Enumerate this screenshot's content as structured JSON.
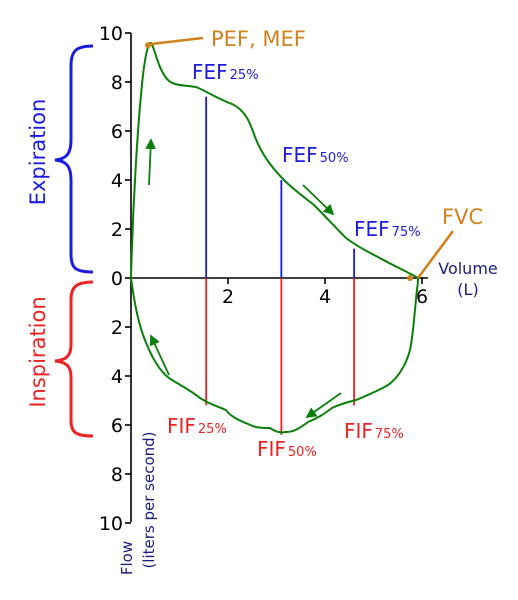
{
  "axis": {
    "flow_ticks": [
      {
        "value": 10,
        "label": "10"
      },
      {
        "value": 8,
        "label": "8"
      },
      {
        "value": 6,
        "label": "6"
      },
      {
        "value": 4,
        "label": "4"
      },
      {
        "value": 2,
        "label": "2"
      },
      {
        "value": 0,
        "label": "0"
      },
      {
        "value": -2,
        "label": "2"
      },
      {
        "value": -4,
        "label": "4"
      },
      {
        "value": -6,
        "label": "6"
      },
      {
        "value": -8,
        "label": "8"
      },
      {
        "value": -10,
        "label": "10"
      }
    ],
    "volume_ticks": [
      {
        "value": 2,
        "label": "2"
      },
      {
        "value": 4,
        "label": "4"
      },
      {
        "value": 6,
        "label": "6"
      }
    ],
    "x_title_line1": "Volume",
    "x_title_line2": "(L)",
    "y_title_line1": "Flow",
    "y_title_line2": "(liters per second)"
  },
  "phases": {
    "expiration": "Expiration",
    "inspiration": "Inspiration"
  },
  "labels": {
    "pef": "PEF, MEF",
    "fvc": "FVC",
    "fef25": {
      "main": "FEF",
      "sub": "25%"
    },
    "fef50": {
      "main": "FEF",
      "sub": "50%"
    },
    "fef75": {
      "main": "FEF",
      "sub": "75%"
    },
    "fif25": {
      "main": "FIF",
      "sub": "25%"
    },
    "fif50": {
      "main": "FIF",
      "sub": "50%"
    },
    "fif75": {
      "main": "FIF",
      "sub": "75%"
    }
  },
  "markers": {
    "fef_volumes": [
      1.55,
      3.1,
      4.6
    ],
    "fef_flows": [
      7.4,
      4.0,
      1.2
    ],
    "fif_flows": [
      -5.2,
      -6.4,
      -5.2
    ],
    "pef": {
      "volume": 0.35,
      "flow": 9.5
    },
    "fvc": {
      "volume": 5.75,
      "flow": 0
    }
  },
  "colors": {
    "curve": "#0a7f0a",
    "expiration": "#1c1ce0",
    "inspiration": "#ee2222",
    "annotation": "#d0821c",
    "axis": "#000000",
    "axis_title": "#1c1c80"
  }
}
